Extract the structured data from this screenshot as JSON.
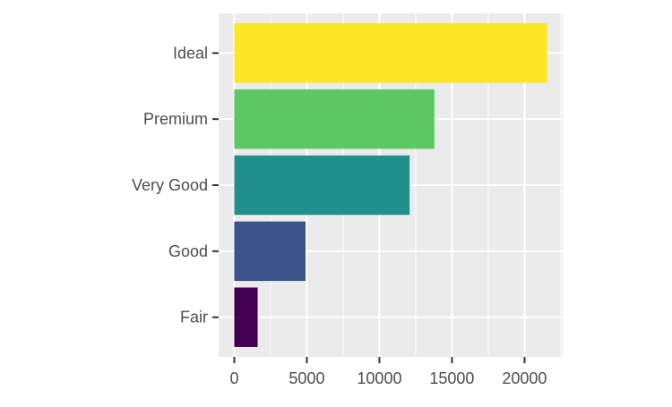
{
  "chart_data": {
    "type": "bar",
    "orientation": "horizontal",
    "categories": [
      "Fair",
      "Good",
      "Very Good",
      "Premium",
      "Ideal"
    ],
    "values": [
      1610,
      4906,
      12082,
      13791,
      21551
    ],
    "colors": [
      "#440154",
      "#3B528B",
      "#21908C",
      "#5DC863",
      "#FDE725"
    ],
    "xlabel": "",
    "ylabel": "",
    "title": "",
    "xlim": [
      -1078,
      22629
    ],
    "x_ticks": [
      0,
      5000,
      10000,
      15000,
      20000
    ],
    "x_tick_labels": [
      "0",
      "5000",
      "10000",
      "15000",
      "20000"
    ],
    "grid": true,
    "legend": "none",
    "panel_background": "#EBEBEB",
    "grid_color": "#FFFFFF"
  }
}
